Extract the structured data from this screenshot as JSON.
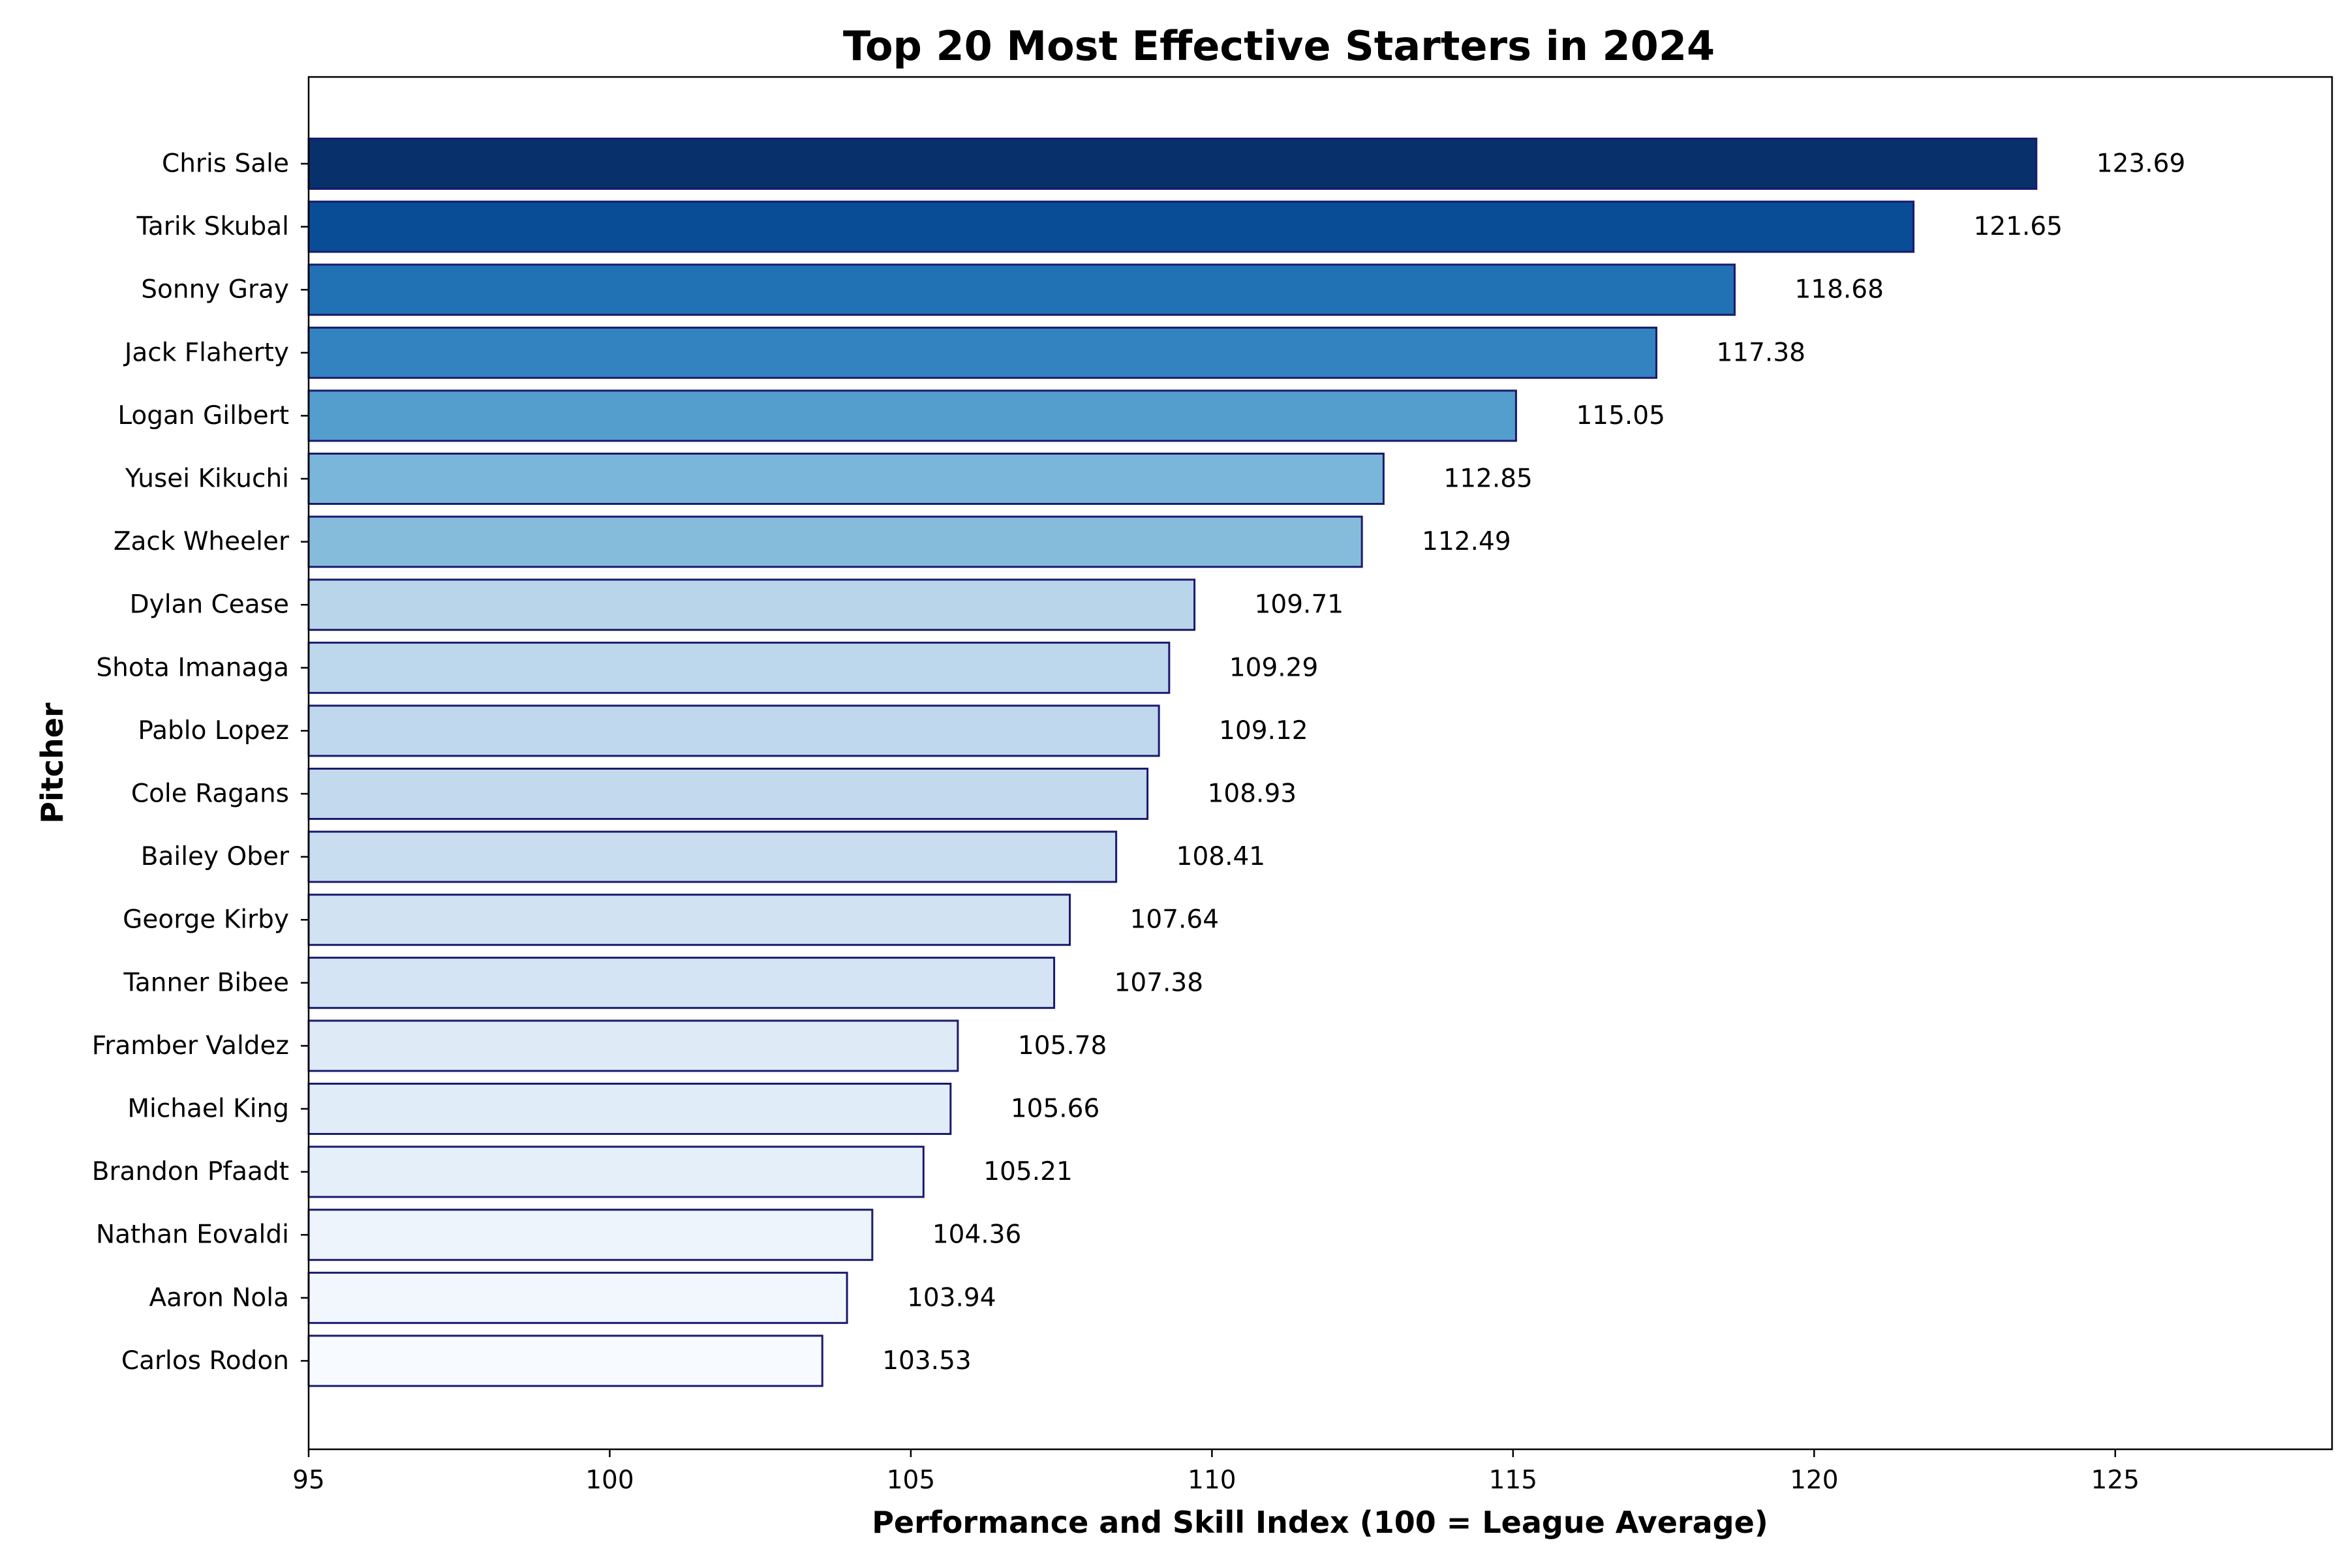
{
  "chart_data": {
    "type": "bar",
    "orientation": "horizontal",
    "title": "Top 20 Most Effective Starters in 2024",
    "xlabel": "Performance and Skill Index (100 = League Average)",
    "ylabel": "Pitcher",
    "xlim": [
      95,
      128.6
    ],
    "xticks": [
      "95",
      "100",
      "105",
      "110",
      "115",
      "120",
      "125"
    ],
    "grid": false,
    "legend": "none",
    "edge_color": "#1a1a6e",
    "categories": [
      "Chris Sale",
      "Tarik Skubal",
      "Sonny Gray",
      "Jack Flaherty",
      "Logan Gilbert",
      "Yusei Kikuchi",
      "Zack Wheeler",
      "Dylan Cease",
      "Shota Imanaga",
      "Pablo Lopez",
      "Cole Ragans",
      "Bailey Ober",
      "George Kirby",
      "Tanner Bibee",
      "Framber Valdez",
      "Michael King",
      "Brandon Pfaadt",
      "Nathan Eovaldi",
      "Aaron Nola",
      "Carlos Rodon"
    ],
    "values": [
      123.69,
      121.65,
      118.68,
      117.38,
      115.05,
      112.85,
      112.49,
      109.71,
      109.29,
      109.12,
      108.93,
      108.41,
      107.64,
      107.38,
      105.78,
      105.66,
      105.21,
      104.36,
      103.94,
      103.53
    ],
    "value_labels": [
      "123.69",
      "121.65",
      "118.68",
      "117.38",
      "115.05",
      "112.85",
      "112.49",
      "109.71",
      "109.29",
      "109.12",
      "108.93",
      "108.41",
      "107.64",
      "107.38",
      "105.78",
      "105.66",
      "105.21",
      "104.36",
      "103.94",
      "103.53"
    ],
    "colors": [
      "#08306b",
      "#084d96",
      "#2171b5",
      "#3383c0",
      "#539ecd",
      "#7ab6d9",
      "#85bcdc",
      "#b8d5ea",
      "#bdd7ec",
      "#c0d8ed",
      "#c2d9ee",
      "#c9ddf0",
      "#d1e2f3",
      "#d4e4f4",
      "#deebf7",
      "#e0ecf8",
      "#e5eff9",
      "#edf4fc",
      "#f1f7fd",
      "#f7fbff"
    ]
  }
}
